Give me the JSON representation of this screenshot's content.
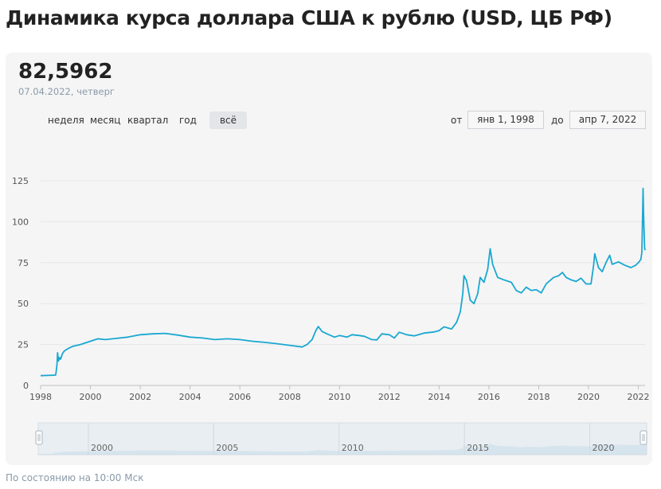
{
  "page": {
    "title": "Динамика курса доллара США к рублю (USD, ЦБ РФ)",
    "footer": "По состоянию на 10:00 Мск"
  },
  "header": {
    "value": "82,5962",
    "date": "07.04.2022",
    "weekday": "четверг"
  },
  "periods": [
    {
      "label": "неделя",
      "active": false
    },
    {
      "label": "месяц",
      "active": false
    },
    {
      "label": "квартал",
      "active": false
    },
    {
      "label": "год",
      "active": false
    },
    {
      "label": "всё",
      "active": true
    }
  ],
  "range": {
    "from_label": "от",
    "from_value": "янв 1, 1998",
    "to_label": "до",
    "to_value": "апр 7, 2022"
  },
  "colors": {
    "line": "#1aa8d0",
    "navigator_area": "#c9dde9",
    "grid": "#e6e6e6"
  },
  "navigator": {
    "labels": [
      "2000",
      "2005",
      "2010",
      "2015",
      "2020"
    ]
  },
  "chart_data": {
    "type": "line",
    "title": "Динамика курса доллара США к рублю (USD, ЦБ РФ)",
    "xlabel": "",
    "ylabel": "",
    "xlim": [
      1998.0,
      2022.27
    ],
    "ylim": [
      0,
      125
    ],
    "x_ticks": [
      "1998",
      "2000",
      "2002",
      "2004",
      "2006",
      "2008",
      "2010",
      "2012",
      "2014",
      "2016",
      "2018",
      "2020",
      "2022"
    ],
    "y_ticks": [
      "0",
      "25",
      "50",
      "75",
      "100",
      "125"
    ],
    "grid": true,
    "series": [
      {
        "points": [
          [
            1998.0,
            6.0
          ],
          [
            1998.6,
            6.3
          ],
          [
            1998.62,
            8.0
          ],
          [
            1998.66,
            13.0
          ],
          [
            1998.68,
            20.0
          ],
          [
            1998.72,
            15.0
          ],
          [
            1998.76,
            17.0
          ],
          [
            1998.8,
            16.0
          ],
          [
            1998.88,
            19.5
          ],
          [
            1998.95,
            21.0
          ],
          [
            1999.1,
            22.5
          ],
          [
            1999.3,
            24.0
          ],
          [
            1999.6,
            25.0
          ],
          [
            1999.9,
            26.5
          ],
          [
            2000.3,
            28.5
          ],
          [
            2000.6,
            28.0
          ],
          [
            2001.0,
            28.7
          ],
          [
            2001.5,
            29.5
          ],
          [
            2002.0,
            31.0
          ],
          [
            2002.5,
            31.5
          ],
          [
            2003.0,
            31.8
          ],
          [
            2003.5,
            30.8
          ],
          [
            2004.0,
            29.5
          ],
          [
            2004.5,
            29.0
          ],
          [
            2005.0,
            28.0
          ],
          [
            2005.5,
            28.5
          ],
          [
            2006.0,
            28.0
          ],
          [
            2006.5,
            27.0
          ],
          [
            2007.0,
            26.3
          ],
          [
            2007.5,
            25.5
          ],
          [
            2008.0,
            24.5
          ],
          [
            2008.5,
            23.5
          ],
          [
            2008.7,
            25.0
          ],
          [
            2008.9,
            28.0
          ],
          [
            2009.05,
            33.5
          ],
          [
            2009.15,
            36.0
          ],
          [
            2009.3,
            33.0
          ],
          [
            2009.5,
            31.5
          ],
          [
            2009.8,
            29.5
          ],
          [
            2010.0,
            30.5
          ],
          [
            2010.3,
            29.5
          ],
          [
            2010.5,
            31.0
          ],
          [
            2010.8,
            30.5
          ],
          [
            2011.0,
            30.0
          ],
          [
            2011.3,
            28.0
          ],
          [
            2011.5,
            27.8
          ],
          [
            2011.7,
            31.5
          ],
          [
            2012.0,
            31.0
          ],
          [
            2012.2,
            29.0
          ],
          [
            2012.4,
            32.5
          ],
          [
            2012.7,
            31.0
          ],
          [
            2013.0,
            30.3
          ],
          [
            2013.4,
            32.0
          ],
          [
            2013.8,
            32.7
          ],
          [
            2014.0,
            33.5
          ],
          [
            2014.2,
            35.8
          ],
          [
            2014.5,
            34.5
          ],
          [
            2014.7,
            38.5
          ],
          [
            2014.85,
            45.0
          ],
          [
            2014.95,
            56.0
          ],
          [
            2015.0,
            67.0
          ],
          [
            2015.1,
            64.0
          ],
          [
            2015.25,
            52.0
          ],
          [
            2015.4,
            50.0
          ],
          [
            2015.55,
            56.0
          ],
          [
            2015.65,
            66.0
          ],
          [
            2015.8,
            63.0
          ],
          [
            2015.95,
            71.0
          ],
          [
            2016.05,
            83.5
          ],
          [
            2016.15,
            74.0
          ],
          [
            2016.35,
            66.0
          ],
          [
            2016.6,
            64.5
          ],
          [
            2016.9,
            63.0
          ],
          [
            2017.1,
            58.0
          ],
          [
            2017.3,
            56.5
          ],
          [
            2017.5,
            60.0
          ],
          [
            2017.7,
            58.0
          ],
          [
            2017.9,
            58.5
          ],
          [
            2018.1,
            56.5
          ],
          [
            2018.3,
            62.0
          ],
          [
            2018.6,
            66.0
          ],
          [
            2018.8,
            67.0
          ],
          [
            2018.95,
            69.0
          ],
          [
            2019.1,
            66.0
          ],
          [
            2019.3,
            64.5
          ],
          [
            2019.5,
            63.5
          ],
          [
            2019.7,
            65.5
          ],
          [
            2019.9,
            62.0
          ],
          [
            2020.1,
            62.0
          ],
          [
            2020.2,
            73.0
          ],
          [
            2020.25,
            80.5
          ],
          [
            2020.4,
            72.0
          ],
          [
            2020.55,
            69.5
          ],
          [
            2020.7,
            75.0
          ],
          [
            2020.85,
            79.5
          ],
          [
            2020.95,
            74.0
          ],
          [
            2021.2,
            75.5
          ],
          [
            2021.45,
            73.5
          ],
          [
            2021.7,
            72.0
          ],
          [
            2021.9,
            73.5
          ],
          [
            2022.0,
            75.0
          ],
          [
            2022.1,
            77.0
          ],
          [
            2022.14,
            81.0
          ],
          [
            2022.17,
            104.0
          ],
          [
            2022.19,
            120.4
          ],
          [
            2022.21,
            105.0
          ],
          [
            2022.23,
            95.0
          ],
          [
            2022.25,
            84.0
          ],
          [
            2022.27,
            82.6
          ]
        ]
      }
    ]
  }
}
